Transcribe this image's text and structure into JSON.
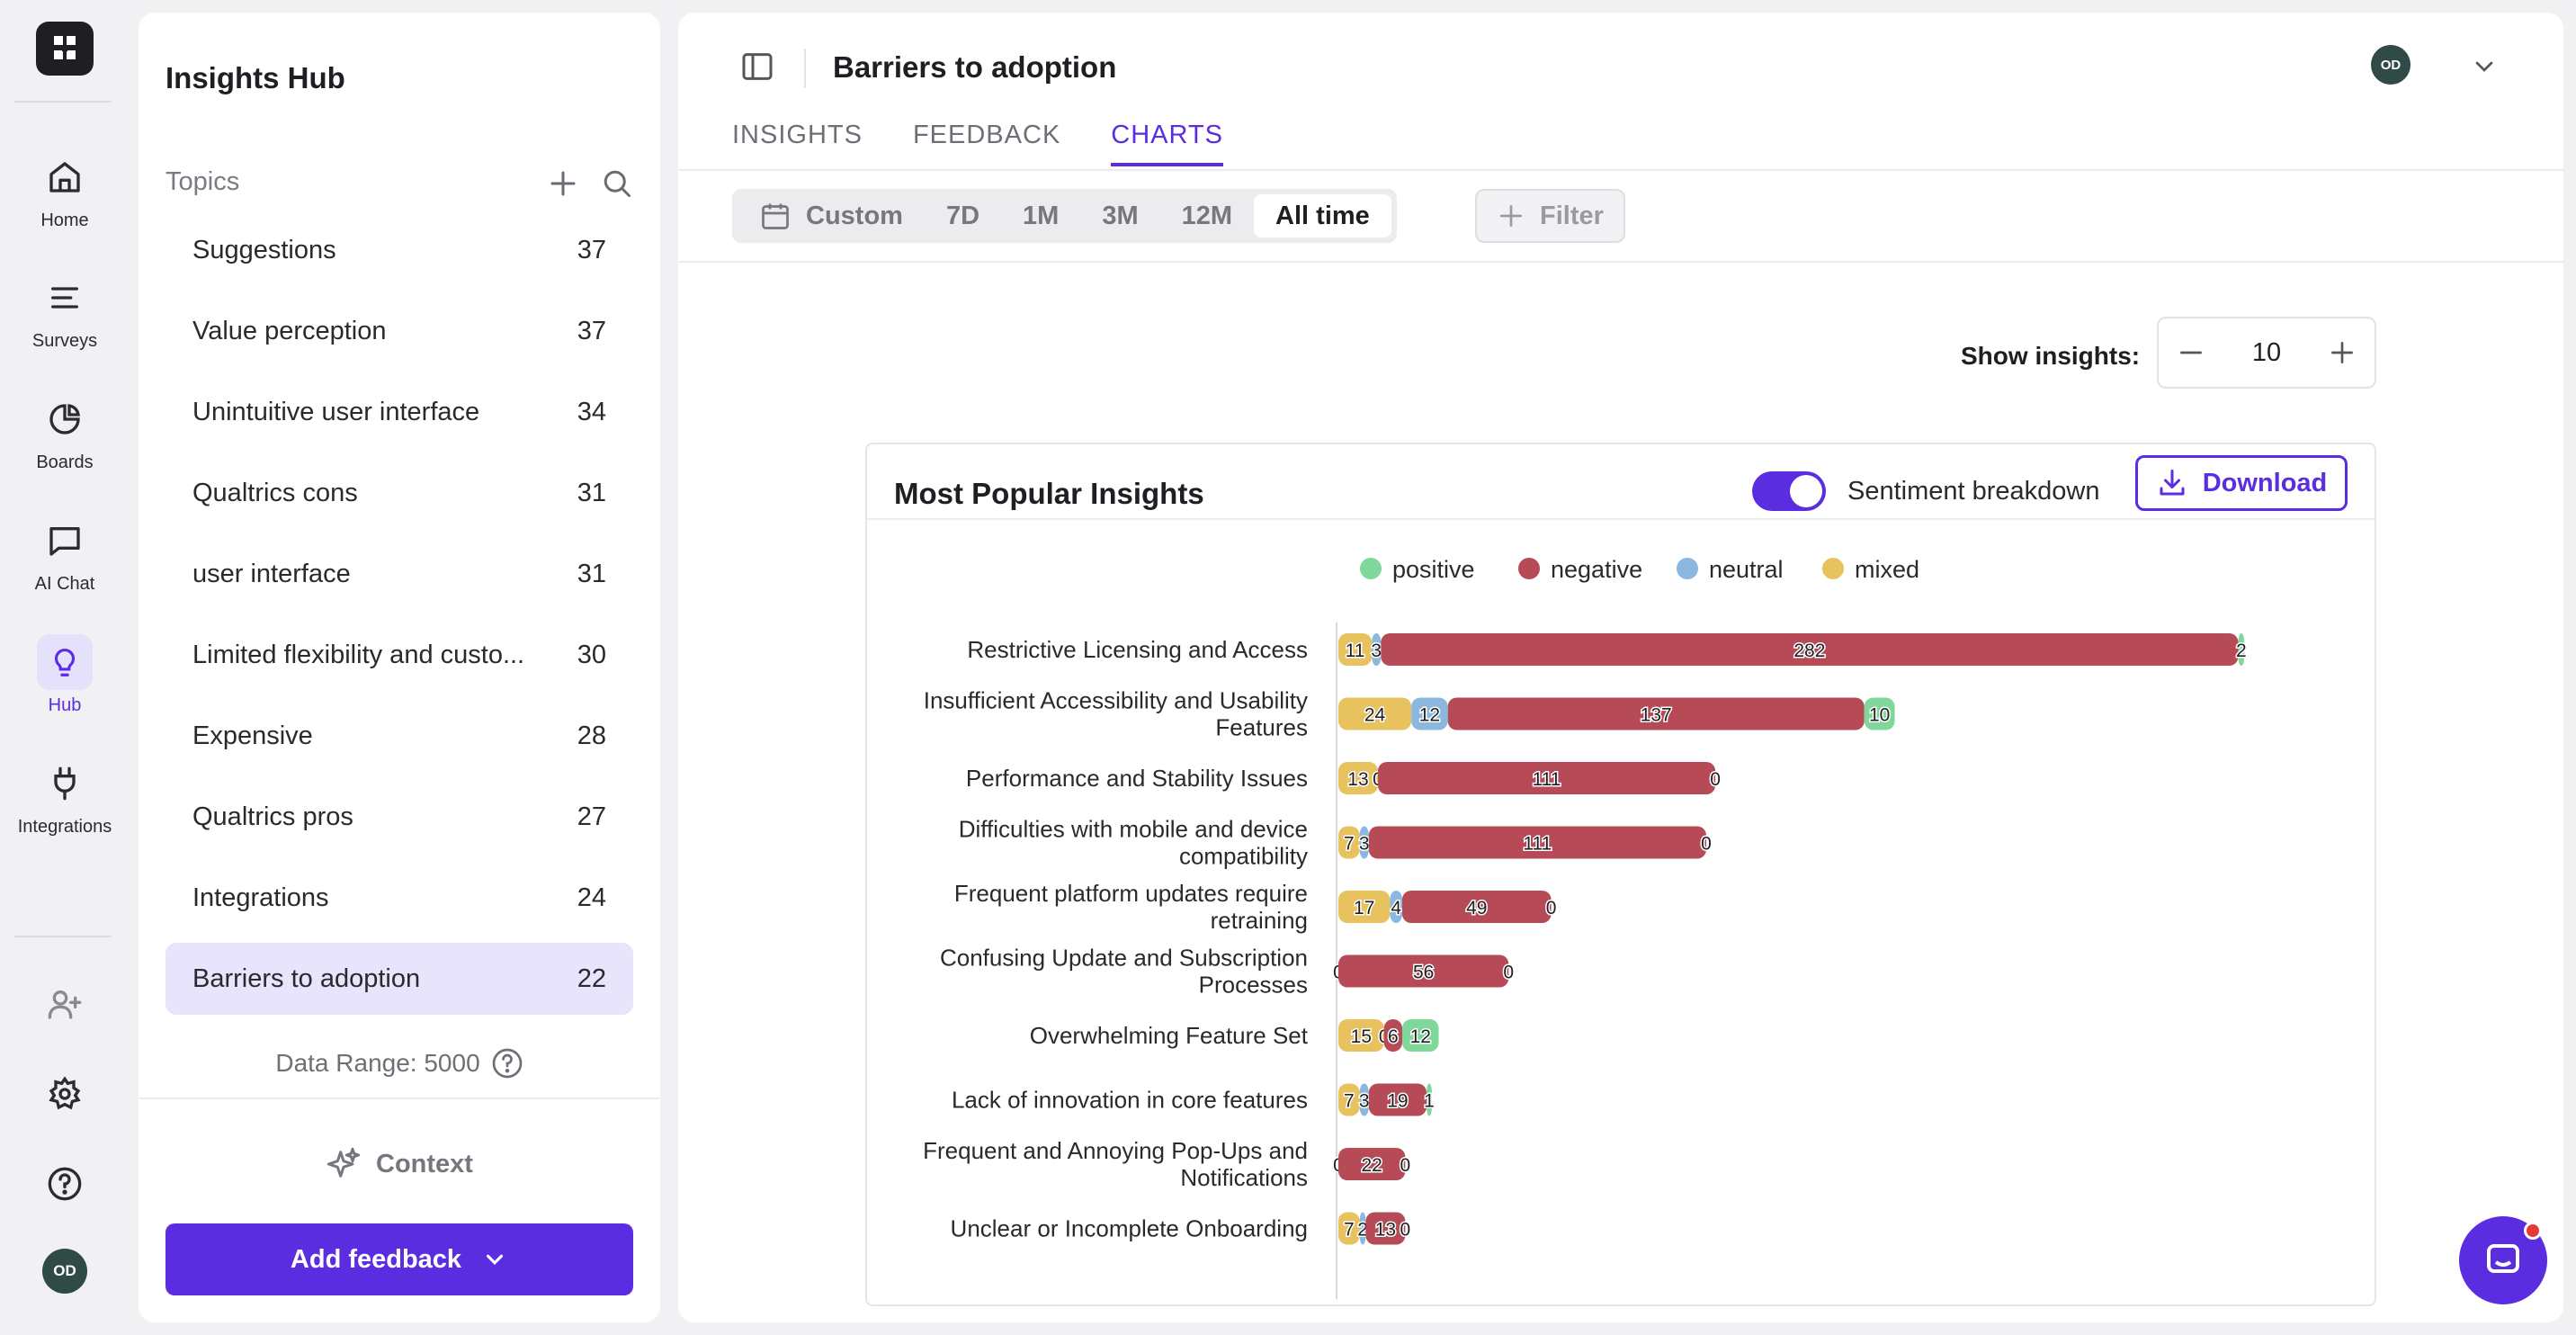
{
  "nav": {
    "items": [
      {
        "label": "Home",
        "icon": "home-icon"
      },
      {
        "label": "Surveys",
        "icon": "list-icon"
      },
      {
        "label": "Boards",
        "icon": "pie-icon"
      },
      {
        "label": "AI Chat",
        "icon": "chat-icon"
      },
      {
        "label": "Hub",
        "icon": "bulb-icon",
        "active": true
      },
      {
        "label": "Integrations",
        "icon": "plug-icon"
      }
    ],
    "user_initials": "OD"
  },
  "sidebar": {
    "title": "Insights Hub",
    "topics_label": "Topics",
    "topics": [
      {
        "name": "Suggestions",
        "count": "37"
      },
      {
        "name": "Value perception",
        "count": "37"
      },
      {
        "name": "Unintuitive user interface",
        "count": "34"
      },
      {
        "name": "Qualtrics cons",
        "count": "31"
      },
      {
        "name": "user interface",
        "count": "31"
      },
      {
        "name": "Limited flexibility and custo...",
        "count": "30"
      },
      {
        "name": "Expensive",
        "count": "28"
      },
      {
        "name": "Qualtrics pros",
        "count": "27"
      },
      {
        "name": "Integrations",
        "count": "24"
      },
      {
        "name": "Barriers to adoption",
        "count": "22"
      }
    ],
    "data_range": "Data Range: 5000",
    "context_label": "Context",
    "add_feedback_label": "Add feedback"
  },
  "header": {
    "title": "Barriers to adoption",
    "user_initials": "OD",
    "tabs": [
      {
        "label": "INSIGHTS"
      },
      {
        "label": "FEEDBACK"
      },
      {
        "label": "CHARTS",
        "active": true
      }
    ]
  },
  "range": {
    "options": [
      "Custom",
      "7D",
      "1M",
      "3M",
      "12M",
      "All time"
    ],
    "selected": "All time",
    "filter_label": "Filter"
  },
  "show_insights": {
    "label": "Show insights:",
    "value": "10"
  },
  "card": {
    "title": "Most Popular Insights",
    "toggle_label": "Sentiment breakdown",
    "toggle_on": true,
    "download_label": "Download"
  },
  "colors": {
    "accent": "#5a2de0",
    "positive": "#7fd89a",
    "negative": "#b64a57",
    "neutral": "#8ab8de",
    "mixed": "#e8c25f"
  },
  "chart_data": {
    "type": "bar",
    "orientation": "horizontal",
    "stacked": true,
    "legend_placement": "top",
    "categories": [
      [
        "Restrictive Licensing and Access"
      ],
      [
        "Insufficient Accessibility and Usability",
        "Features"
      ],
      [
        "Performance and Stability Issues"
      ],
      [
        "Difficulties with mobile and device",
        "compatibility"
      ],
      [
        "Frequent platform updates require",
        "retraining"
      ],
      [
        "Confusing Update and Subscription",
        "Processes"
      ],
      [
        "Overwhelming Feature Set"
      ],
      [
        "Lack of innovation in core features"
      ],
      [
        "Frequent and Annoying Pop-Ups and",
        "Notifications"
      ],
      [
        "Unclear or Incomplete Onboarding"
      ]
    ],
    "series": [
      {
        "name": "mixed",
        "values": [
          11,
          24,
          13,
          7,
          17,
          0,
          15,
          7,
          0,
          7
        ]
      },
      {
        "name": "neutral",
        "values": [
          3,
          12,
          0,
          3,
          4,
          0,
          0,
          3,
          0,
          2
        ]
      },
      {
        "name": "negative",
        "values": [
          282,
          137,
          111,
          111,
          49,
          56,
          6,
          19,
          22,
          13
        ]
      },
      {
        "name": "positive",
        "values": [
          2,
          10,
          0,
          0,
          0,
          0,
          12,
          1,
          0,
          0
        ]
      }
    ],
    "legend_order": [
      "positive",
      "negative",
      "neutral",
      "mixed"
    ]
  }
}
